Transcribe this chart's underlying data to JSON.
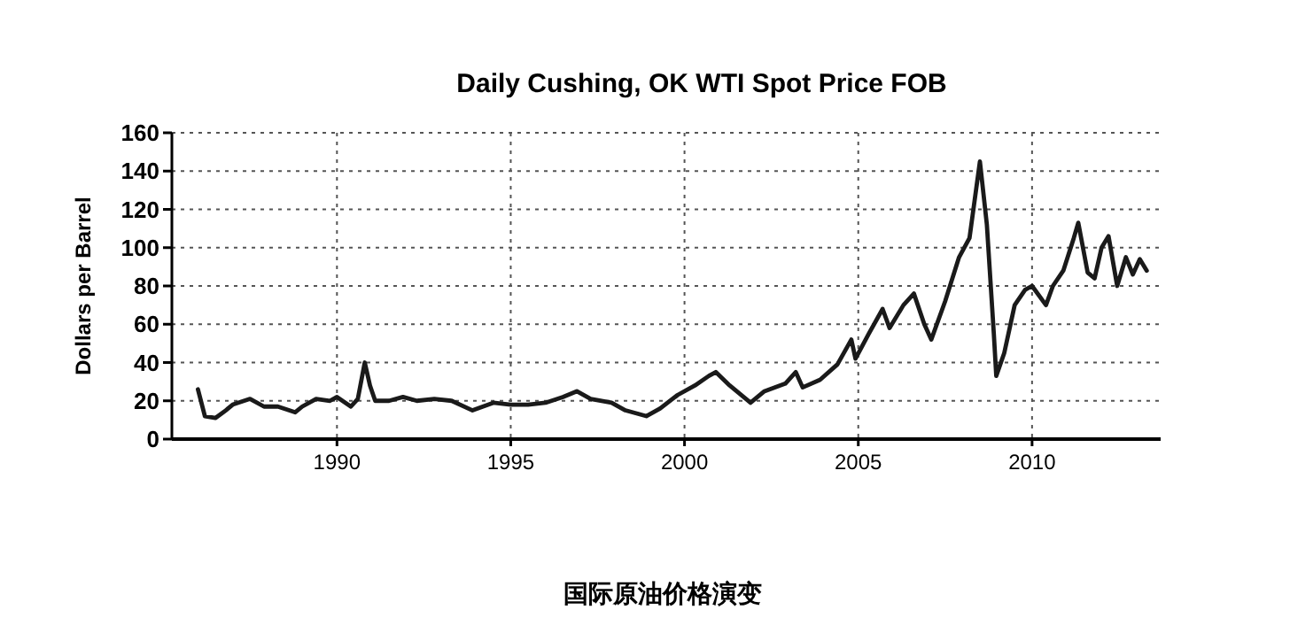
{
  "chart_data": {
    "type": "line",
    "title": "Daily Cushing, OK WTI Spot Price FOB",
    "ylabel": "Dollars per Barrel",
    "annotations": [
      "国际原油价格演变"
    ],
    "x": [
      1986.0,
      1986.2,
      1986.5,
      1986.8,
      1987.0,
      1987.5,
      1987.9,
      1988.3,
      1988.8,
      1989.0,
      1989.4,
      1989.8,
      1990.0,
      1990.4,
      1990.6,
      1990.8,
      1990.95,
      1991.1,
      1991.5,
      1991.9,
      1992.3,
      1992.8,
      1993.3,
      1993.9,
      1994.5,
      1995.0,
      1995.5,
      1996.0,
      1996.5,
      1996.9,
      1997.3,
      1997.9,
      1998.3,
      1998.9,
      1999.3,
      1999.8,
      2000.3,
      2000.7,
      2000.9,
      2001.3,
      2001.9,
      2002.3,
      2002.9,
      2003.2,
      2003.4,
      2003.9,
      2004.4,
      2004.8,
      2004.92,
      2005.3,
      2005.7,
      2005.9,
      2006.3,
      2006.6,
      2006.9,
      2007.1,
      2007.5,
      2007.9,
      2008.2,
      2008.5,
      2008.7,
      2008.9,
      2008.97,
      2009.2,
      2009.5,
      2009.8,
      2010.0,
      2010.4,
      2010.6,
      2010.9,
      2011.2,
      2011.33,
      2011.6,
      2011.8,
      2012.0,
      2012.2,
      2012.45,
      2012.7,
      2012.9,
      2013.1,
      2013.3
    ],
    "series": [
      {
        "color": "#1a1a1a",
        "values": [
          26,
          12,
          11,
          15,
          18,
          21,
          17,
          17,
          14,
          17,
          21,
          20,
          22,
          17,
          21,
          40,
          28,
          20,
          20,
          22,
          20,
          21,
          20,
          15,
          19,
          18,
          18,
          19,
          22,
          25,
          21,
          19,
          15,
          12,
          16,
          23,
          28,
          33,
          35,
          28,
          19,
          25,
          29,
          35,
          27,
          31,
          39,
          52,
          42,
          55,
          68,
          58,
          70,
          76,
          60,
          52,
          72,
          95,
          105,
          145,
          112,
          55,
          33,
          45,
          70,
          78,
          80,
          70,
          80,
          88,
          105,
          113,
          87,
          84,
          100,
          106,
          80,
          95,
          86,
          94,
          88
        ]
      }
    ],
    "xlim": [
      1985.25,
      2013.7
    ],
    "xticks": [
      1990,
      1995,
      2000,
      2005,
      2010
    ],
    "ylim": [
      0,
      160
    ],
    "yticks": [
      0,
      20,
      40,
      60,
      80,
      100,
      120,
      140,
      160
    ],
    "grid": true,
    "marker": "none",
    "line_style": "solid"
  }
}
